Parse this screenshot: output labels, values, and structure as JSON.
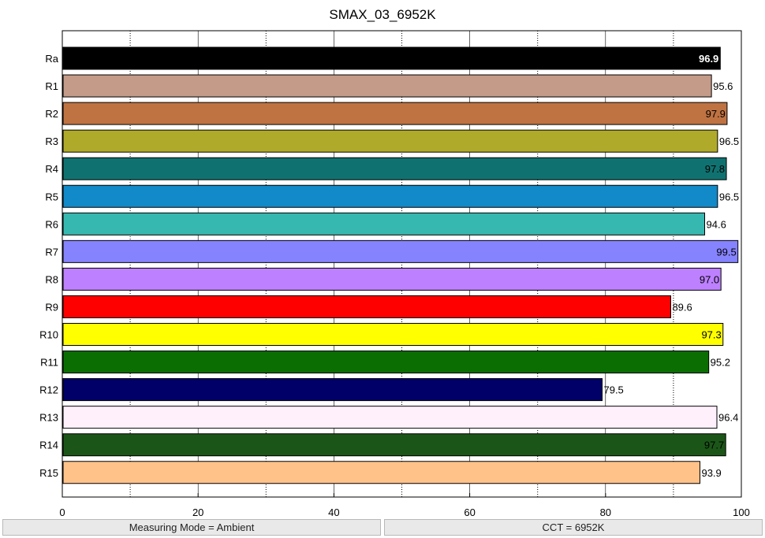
{
  "chart_data": {
    "type": "bar",
    "orientation": "horizontal",
    "title": "SMAX_03_6952K",
    "xlabel": "",
    "ylabel": "",
    "xlim": [
      0,
      100
    ],
    "x_ticks": [
      0,
      20,
      40,
      60,
      80,
      100
    ],
    "grid": {
      "major": true,
      "minor": true,
      "axis": "x"
    },
    "categories": [
      "Ra",
      "R1",
      "R2",
      "R3",
      "R4",
      "R5",
      "R6",
      "R7",
      "R8",
      "R9",
      "R10",
      "R11",
      "R12",
      "R13",
      "R14",
      "R15"
    ],
    "values": [
      96.9,
      95.6,
      97.9,
      96.5,
      97.8,
      96.5,
      94.6,
      99.5,
      97.0,
      89.6,
      97.3,
      95.2,
      79.5,
      96.4,
      97.7,
      93.9
    ],
    "value_labels": [
      "96.9",
      "95.6",
      "97.9",
      "96.5",
      "97.8",
      "96.5",
      "94.6",
      "99.5",
      "97.0",
      "89.6",
      "97.3",
      "95.2",
      "79.5",
      "96.4",
      "97.7",
      "93.9"
    ],
    "colors": [
      "#000000",
      "#c49a88",
      "#bf7242",
      "#afaa2a",
      "#107270",
      "#1289c8",
      "#36b8b0",
      "#8683ff",
      "#bd80ff",
      "#ff0000",
      "#ffff00",
      "#0a6e02",
      "#000068",
      "#fff0fc",
      "#1b5618",
      "#ffc288"
    ],
    "label_colors": [
      "#ffffff",
      "#000000",
      "#000000",
      "#000000",
      "#000000",
      "#000000",
      "#000000",
      "#000000",
      "#000000",
      "#000000",
      "#000000",
      "#000000",
      "#000000",
      "#000000",
      "#000000",
      "#000000"
    ]
  },
  "status": {
    "measuring_mode": "Measuring Mode = Ambient",
    "cct": "CCT = 6952K"
  }
}
